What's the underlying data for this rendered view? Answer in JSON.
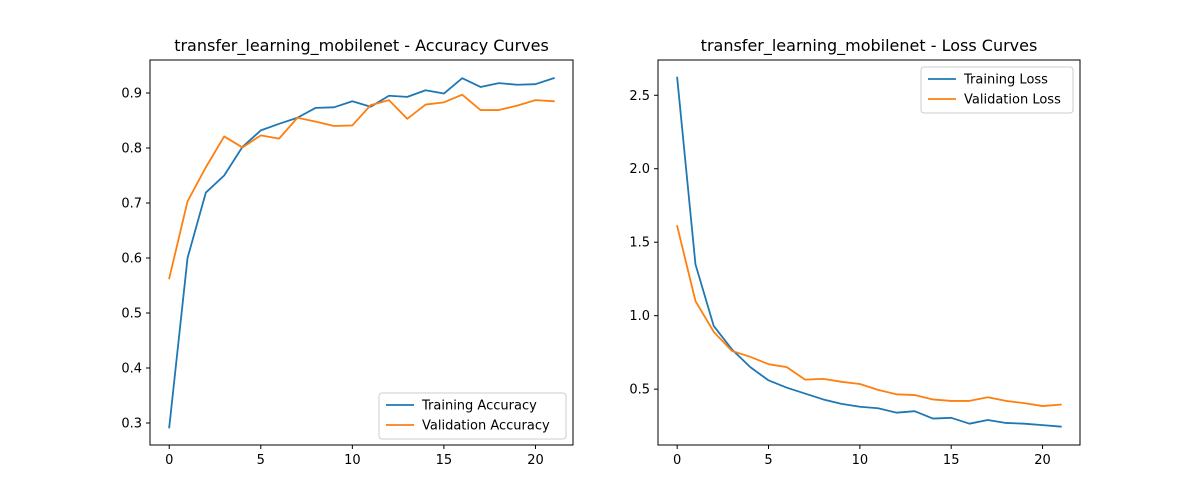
{
  "chart_data": [
    {
      "type": "line",
      "title": "transfer_learning_mobilenet - Accuracy Curves",
      "xlabel": "",
      "ylabel": "",
      "xlim": [
        -1.05,
        22.05
      ],
      "ylim": [
        0.26,
        0.96
      ],
      "x_ticks": [
        0,
        5,
        10,
        15,
        20
      ],
      "x_tick_labels": [
        "0",
        "5",
        "10",
        "15",
        "20"
      ],
      "y_ticks": [
        0.3,
        0.4,
        0.5,
        0.6,
        0.7,
        0.8,
        0.9
      ],
      "y_tick_labels": [
        "0.3",
        "0.4",
        "0.5",
        "0.6",
        "0.7",
        "0.8",
        "0.9"
      ],
      "grid": false,
      "legend_position": "lower-right",
      "x": [
        0,
        1,
        2,
        3,
        4,
        5,
        6,
        7,
        8,
        9,
        10,
        11,
        12,
        13,
        14,
        15,
        16,
        17,
        18,
        19,
        20,
        21
      ],
      "series": [
        {
          "name": "Training Accuracy",
          "color": "#1f77b4",
          "values": [
            0.292,
            0.6,
            0.719,
            0.75,
            0.802,
            0.832,
            0.844,
            0.855,
            0.873,
            0.874,
            0.885,
            0.875,
            0.895,
            0.893,
            0.905,
            0.899,
            0.927,
            0.911,
            0.918,
            0.915,
            0.916,
            0.927
          ]
        },
        {
          "name": "Validation Accuracy",
          "color": "#ff7f0e",
          "values": [
            0.563,
            0.703,
            0.765,
            0.821,
            0.801,
            0.823,
            0.817,
            0.855,
            0.848,
            0.84,
            0.841,
            0.878,
            0.887,
            0.853,
            0.879,
            0.883,
            0.897,
            0.869,
            0.869,
            0.877,
            0.887,
            0.885
          ]
        }
      ]
    },
    {
      "type": "line",
      "title": "transfer_learning_mobilenet - Loss Curves",
      "xlabel": "",
      "ylabel": "",
      "xlim": [
        -1.05,
        22.05
      ],
      "ylim": [
        0.12,
        2.74
      ],
      "x_ticks": [
        0,
        5,
        10,
        15,
        20
      ],
      "x_tick_labels": [
        "0",
        "5",
        "10",
        "15",
        "20"
      ],
      "y_ticks": [
        0.5,
        1.0,
        1.5,
        2.0,
        2.5
      ],
      "y_tick_labels": [
        "0.5",
        "1.0",
        "1.5",
        "2.0",
        "2.5"
      ],
      "grid": false,
      "legend_position": "upper-right",
      "x": [
        0,
        1,
        2,
        3,
        4,
        5,
        6,
        7,
        8,
        9,
        10,
        11,
        12,
        13,
        14,
        15,
        16,
        17,
        18,
        19,
        20,
        21
      ],
      "series": [
        {
          "name": "Training Loss",
          "color": "#1f77b4",
          "values": [
            2.62,
            1.35,
            0.93,
            0.77,
            0.65,
            0.56,
            0.51,
            0.47,
            0.43,
            0.4,
            0.38,
            0.37,
            0.34,
            0.35,
            0.3,
            0.305,
            0.265,
            0.29,
            0.27,
            0.265,
            0.255,
            0.245
          ]
        },
        {
          "name": "Validation Loss",
          "color": "#ff7f0e",
          "values": [
            1.61,
            1.1,
            0.89,
            0.76,
            0.72,
            0.67,
            0.65,
            0.565,
            0.57,
            0.55,
            0.535,
            0.495,
            0.465,
            0.46,
            0.43,
            0.42,
            0.42,
            0.445,
            0.42,
            0.405,
            0.385,
            0.395
          ]
        }
      ]
    }
  ]
}
